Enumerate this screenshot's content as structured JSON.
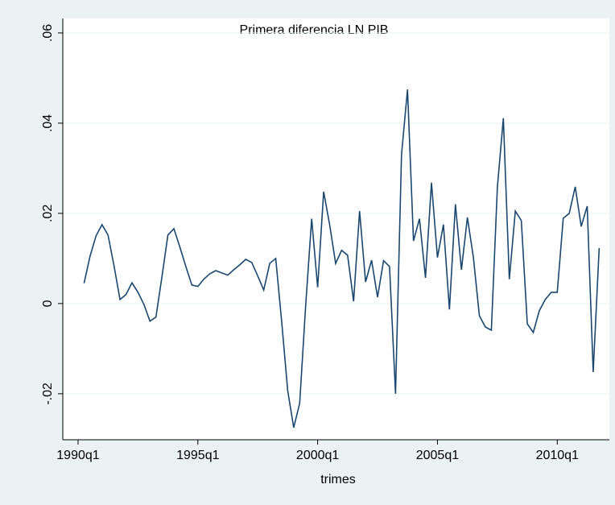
{
  "chart_data": {
    "type": "line",
    "title": "Primera diferencia LN PIB",
    "x_label": "trimes",
    "x": [
      121,
      122,
      123,
      124,
      125,
      126,
      127,
      128,
      129,
      130,
      131,
      132,
      133,
      134,
      135,
      136,
      137,
      138,
      139,
      140,
      141,
      142,
      143,
      144,
      145,
      146,
      147,
      148,
      149,
      150,
      151,
      152,
      153,
      154,
      155,
      156,
      157,
      158,
      159,
      160,
      161,
      162,
      163,
      164,
      165,
      166,
      167,
      168,
      169,
      170,
      171,
      172,
      173,
      174,
      175,
      176,
      177,
      178,
      179,
      180,
      181,
      182,
      183,
      184,
      185,
      186,
      187,
      188,
      189,
      190,
      191,
      192,
      193,
      194,
      195,
      196,
      197,
      198,
      199,
      200,
      201,
      202,
      203,
      204,
      205,
      206,
      207
    ],
    "series": [
      {
        "color": "#1a476f",
        "values": [
          0.0045,
          0.0105,
          0.015,
          0.0175,
          0.0152,
          0.0084,
          0.0009,
          0.002,
          0.0046,
          0.0025,
          -0.0002,
          -0.0039,
          -0.003,
          0.0059,
          0.0152,
          0.0166,
          0.0125,
          0.0082,
          0.0041,
          0.0038,
          0.0054,
          0.0066,
          0.0073,
          0.0068,
          0.0063,
          0.0075,
          0.0086,
          0.0098,
          0.0091,
          0.0061,
          0.003,
          0.0089,
          0.01,
          -0.0041,
          -0.0193,
          -0.0275,
          -0.0221,
          -0.0004,
          0.0188,
          0.0036,
          0.0248,
          0.0175,
          0.0089,
          0.0118,
          0.0107,
          0.0005,
          0.0205,
          0.0048,
          0.0096,
          0.0014,
          0.0095,
          0.0082,
          -0.02,
          0.033,
          0.0475,
          0.0139,
          0.0188,
          0.0057,
          0.0268,
          0.0102,
          0.0175,
          -0.0013,
          0.022,
          0.0075,
          0.0191,
          0.0102,
          -0.0027,
          -0.0052,
          -0.0059,
          0.0257,
          0.0411,
          0.0054,
          0.0205,
          0.0184,
          -0.0045,
          -0.0064,
          -0.0016,
          0.0009,
          0.0025,
          0.0025,
          0.0189,
          0.02,
          0.0259,
          0.0171,
          0.0216,
          -0.0152,
          0.0123
        ]
      }
    ],
    "xlim": [
      117.45,
      208.7
    ],
    "ylim": [
      -0.0302,
      0.0632
    ],
    "xticks": [
      {
        "value": 120,
        "label": "1990q1"
      },
      {
        "value": 140,
        "label": "1995q1"
      },
      {
        "value": 160,
        "label": "2000q1"
      },
      {
        "value": 180,
        "label": "2005q1"
      },
      {
        "value": 200,
        "label": "2010q1"
      }
    ],
    "yticks": [
      {
        "value": -0.02,
        "label": "-.02"
      },
      0,
      {
        "value": 0.02,
        "label": ".02"
      },
      {
        "value": 0.04,
        "label": ".04"
      },
      {
        "value": 0.06,
        "label": ".06"
      }
    ],
    "grid": true
  }
}
